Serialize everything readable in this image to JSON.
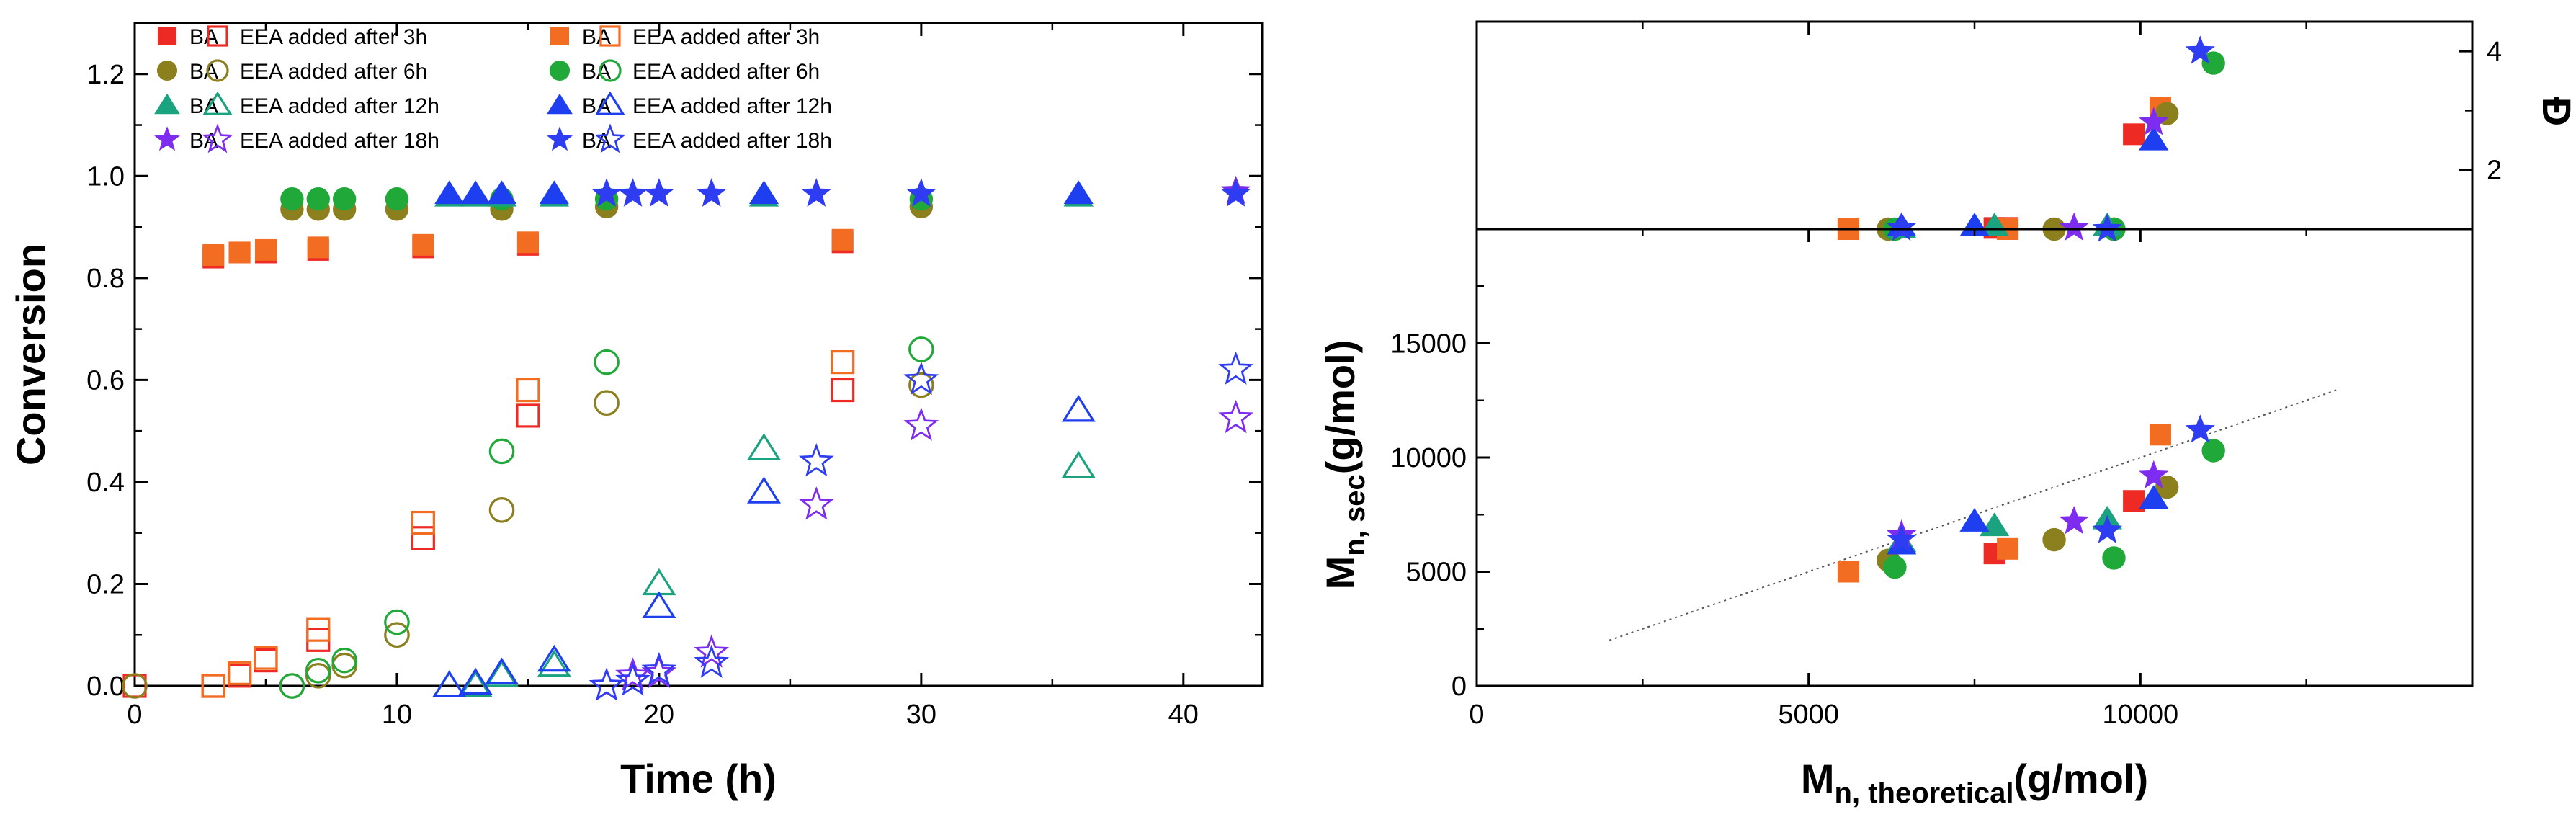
{
  "colors": {
    "red": "#ee2a24",
    "orange": "#f26c21",
    "olive": "#8b7f1e",
    "green": "#20a838",
    "teal": "#1aa37e",
    "blue": "#1d3ff0",
    "purple": "#7d2cf0",
    "star_blue": "#2e3df2"
  },
  "chart_data": [
    {
      "id": "conversion-vs-time",
      "type": "scatter",
      "xlabel": "Time (h)",
      "ylabel": "Conversion",
      "xlim": [
        0,
        43
      ],
      "ylim": [
        0,
        1.3
      ],
      "xticks": [
        0,
        10,
        20,
        30,
        40
      ],
      "yticks": [
        0.0,
        0.2,
        0.4,
        0.6,
        0.8,
        1.0,
        1.2
      ],
      "ytick_labels": [
        "0.0",
        "0.2",
        "0.4",
        "0.6",
        "0.8",
        "1.0",
        "1.2"
      ],
      "legend_position": "top-left",
      "series": [
        {
          "name": "BA",
          "color": "red",
          "marker": "square",
          "filled": true,
          "x": [
            3,
            4,
            5,
            7,
            11,
            15,
            27
          ],
          "y": [
            0.84,
            0.85,
            0.85,
            0.855,
            0.86,
            0.865,
            0.87
          ]
        },
        {
          "name": "EEA added after 3h",
          "color": "red",
          "marker": "square",
          "filled": false,
          "x": [
            0,
            3,
            4,
            5,
            7,
            11,
            15,
            27
          ],
          "y": [
            0.0,
            0.0,
            0.02,
            0.05,
            0.09,
            0.29,
            0.53,
            0.58
          ]
        },
        {
          "name": "BA",
          "color": "olive",
          "marker": "circle",
          "filled": true,
          "x": [
            6,
            7,
            8,
            10,
            14,
            18,
            30
          ],
          "y": [
            0.935,
            0.935,
            0.935,
            0.935,
            0.935,
            0.94,
            0.94
          ]
        },
        {
          "name": "EEA added after 6h",
          "color": "olive",
          "marker": "circle",
          "filled": false,
          "x": [
            0,
            6,
            7,
            8,
            10,
            14,
            18,
            30
          ],
          "y": [
            0.0,
            0.0,
            0.02,
            0.04,
            0.1,
            0.345,
            0.555,
            0.59
          ]
        },
        {
          "name": "BA",
          "color": "teal",
          "marker": "triangle",
          "filled": true,
          "x": [
            12,
            13,
            14,
            16,
            24,
            36
          ],
          "y": [
            0.96,
            0.96,
            0.96,
            0.96,
            0.96,
            0.96
          ]
        },
        {
          "name": "EEA added after 12h",
          "color": "teal",
          "marker": "triangle",
          "filled": false,
          "x": [
            12,
            13,
            14,
            16,
            20,
            24,
            36
          ],
          "y": [
            0.0,
            0.0,
            0.02,
            0.04,
            0.2,
            0.465,
            0.43
          ]
        },
        {
          "name": "BA",
          "color": "purple",
          "marker": "star",
          "filled": true,
          "x": [
            18,
            19,
            20,
            22,
            26,
            30,
            42
          ],
          "y": [
            0.965,
            0.965,
            0.965,
            0.965,
            0.965,
            0.965,
            0.97
          ]
        },
        {
          "name": "EEA added after 18h",
          "color": "purple",
          "marker": "star",
          "filled": false,
          "x": [
            18,
            19,
            20,
            22,
            26,
            30,
            42
          ],
          "y": [
            0.0,
            0.02,
            0.025,
            0.065,
            0.355,
            0.51,
            0.525
          ]
        },
        {
          "name": "BA",
          "color": "orange",
          "marker": "square",
          "filled": true,
          "x": [
            3,
            4,
            5,
            7,
            11,
            15,
            27
          ],
          "y": [
            0.845,
            0.85,
            0.855,
            0.86,
            0.865,
            0.87,
            0.875
          ]
        },
        {
          "name": "EEA added after 3h",
          "color": "orange",
          "marker": "square",
          "filled": false,
          "x": [
            3,
            4,
            5,
            7,
            11,
            15,
            27
          ],
          "y": [
            0.0,
            0.025,
            0.055,
            0.11,
            0.32,
            0.58,
            0.635
          ]
        },
        {
          "name": "BA",
          "color": "green",
          "marker": "circle",
          "filled": true,
          "x": [
            6,
            7,
            8,
            10,
            14,
            18,
            30
          ],
          "y": [
            0.955,
            0.955,
            0.955,
            0.955,
            0.955,
            0.955,
            0.955
          ]
        },
        {
          "name": "EEA added after 6h",
          "color": "green",
          "marker": "circle",
          "filled": false,
          "x": [
            6,
            7,
            8,
            10,
            14,
            18,
            30
          ],
          "y": [
            0.0,
            0.03,
            0.05,
            0.125,
            0.46,
            0.635,
            0.66
          ]
        },
        {
          "name": "BA",
          "color": "blue",
          "marker": "triangle",
          "filled": true,
          "x": [
            12,
            13,
            14,
            16,
            24,
            36
          ],
          "y": [
            0.965,
            0.965,
            0.965,
            0.965,
            0.965,
            0.965
          ]
        },
        {
          "name": "EEA added after 12h",
          "color": "blue",
          "marker": "triangle",
          "filled": false,
          "x": [
            12,
            13,
            14,
            16,
            20,
            24,
            36
          ],
          "y": [
            0.0,
            0.005,
            0.025,
            0.05,
            0.155,
            0.38,
            0.54
          ]
        },
        {
          "name": "BA",
          "color": "star_blue",
          "marker": "star",
          "filled": true,
          "x": [
            18,
            19,
            20,
            22,
            26,
            30,
            42
          ],
          "y": [
            0.965,
            0.965,
            0.965,
            0.965,
            0.965,
            0.965,
            0.965
          ]
        },
        {
          "name": "EEA added after 18h",
          "color": "star_blue",
          "marker": "star",
          "filled": false,
          "x": [
            18,
            19,
            20,
            22,
            26,
            30,
            42
          ],
          "y": [
            0.0,
            0.01,
            0.03,
            0.045,
            0.44,
            0.6,
            0.62
          ]
        }
      ],
      "legend": [
        {
          "label": "BA",
          "series": 0
        },
        {
          "label": "EEA added after 3h",
          "series": 1
        },
        {
          "label": "BA",
          "series": 8
        },
        {
          "label": "EEA added after 3h",
          "series": 9
        },
        {
          "label": "BA",
          "series": 2
        },
        {
          "label": "EEA added after 6h",
          "series": 3
        },
        {
          "label": "BA",
          "series": 10
        },
        {
          "label": "EEA added after 6h",
          "series": 11
        },
        {
          "label": "BA",
          "series": 4
        },
        {
          "label": "EEA added after 12h",
          "series": 5
        },
        {
          "label": "BA",
          "series": 12
        },
        {
          "label": "EEA added after 12h",
          "series": 13
        },
        {
          "label": "BA",
          "series": 6
        },
        {
          "label": "EEA added after 18h",
          "series": 7
        },
        {
          "label": "BA",
          "series": 14
        },
        {
          "label": "EEA added after 18h",
          "series": 15
        }
      ]
    },
    {
      "id": "dispersity-vs-mn",
      "type": "scatter",
      "xlabel": "",
      "ylabel": "Đ",
      "xlim": [
        0,
        15000
      ],
      "ylim": [
        1,
        4.5
      ],
      "yticks": [
        2,
        4
      ],
      "ytick_labels": [
        "2",
        "4"
      ],
      "series": [
        {
          "color": "red",
          "marker": "square",
          "x": [
            5600,
            7800,
            8000,
            9900
          ],
          "y": [
            1.0,
            1.02,
            1.02,
            2.6
          ]
        },
        {
          "color": "orange",
          "marker": "square",
          "x": [
            5600,
            8000,
            10300
          ],
          "y": [
            1.0,
            1.0,
            3.05
          ]
        },
        {
          "color": "olive",
          "marker": "circle",
          "x": [
            6200,
            8700,
            9600,
            10400
          ],
          "y": [
            1.0,
            1.0,
            1.0,
            2.95
          ]
        },
        {
          "color": "green",
          "marker": "circle",
          "x": [
            6300,
            9600,
            11100
          ],
          "y": [
            1.0,
            1.0,
            3.8
          ]
        },
        {
          "color": "teal",
          "marker": "triangle",
          "x": [
            6400,
            7800,
            9500
          ],
          "y": [
            1.02,
            1.05,
            1.05
          ]
        },
        {
          "color": "blue",
          "marker": "triangle",
          "x": [
            6400,
            7500,
            10200
          ],
          "y": [
            1.05,
            1.05,
            2.5
          ]
        },
        {
          "color": "purple",
          "marker": "star",
          "x": [
            6400,
            9000,
            10200
          ],
          "y": [
            1.02,
            1.02,
            2.8
          ]
        },
        {
          "color": "star_blue",
          "marker": "star",
          "x": [
            6400,
            9500,
            10900
          ],
          "y": [
            1.02,
            1.0,
            4.0
          ]
        }
      ]
    },
    {
      "id": "mn-sec-vs-mn-theoretical",
      "type": "scatter",
      "xlabel_main": "M",
      "xlabel_sub": "n, theoretical",
      "xlabel_unit": "(g/mol)",
      "ylabel_main": "M",
      "ylabel_sub": "n, sec",
      "ylabel_unit": "(g/mol)",
      "xlim": [
        0,
        15000
      ],
      "ylim": [
        0,
        20000
      ],
      "xticks": [
        0,
        5000,
        10000
      ],
      "yticks": [
        0,
        5000,
        10000,
        15000
      ],
      "reference_line": {
        "x": [
          2000,
          13000
        ],
        "y": [
          2000,
          13000
        ],
        "style": "dotted"
      },
      "series": [
        {
          "color": "red",
          "marker": "square",
          "x": [
            7800,
            9900
          ],
          "y": [
            5800,
            8100
          ]
        },
        {
          "color": "orange",
          "marker": "square",
          "x": [
            5600,
            8000,
            10300
          ],
          "y": [
            5000,
            6000,
            11000
          ]
        },
        {
          "color": "olive",
          "marker": "circle",
          "x": [
            6200,
            8700,
            10400
          ],
          "y": [
            5500,
            6400,
            8700
          ]
        },
        {
          "color": "green",
          "marker": "circle",
          "x": [
            6300,
            9600,
            11100
          ],
          "y": [
            5200,
            5600,
            10300
          ]
        },
        {
          "color": "teal",
          "marker": "triangle",
          "x": [
            6400,
            7800,
            9500
          ],
          "y": [
            6300,
            7000,
            7300
          ]
        },
        {
          "color": "blue",
          "marker": "triangle",
          "x": [
            6400,
            7500,
            10200
          ],
          "y": [
            6200,
            7200,
            8200
          ]
        },
        {
          "color": "purple",
          "marker": "star",
          "x": [
            6400,
            9000,
            10200
          ],
          "y": [
            6600,
            7200,
            9200
          ]
        },
        {
          "color": "star_blue",
          "marker": "star",
          "x": [
            6400,
            9500,
            10900
          ],
          "y": [
            6400,
            6800,
            11200
          ]
        }
      ]
    }
  ]
}
